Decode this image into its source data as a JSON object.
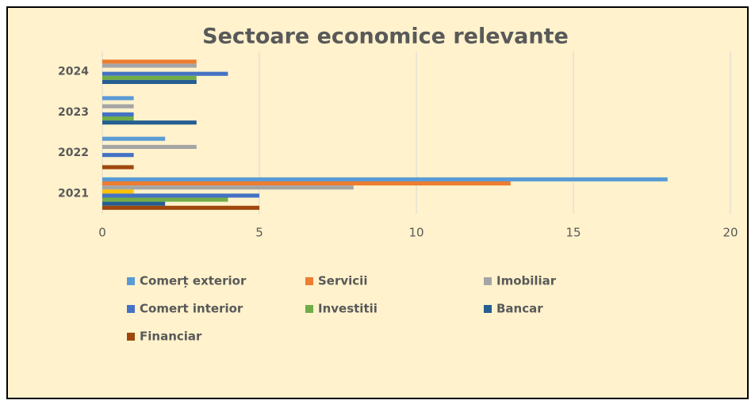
{
  "chart_data": {
    "type": "barh",
    "title": "Sectoare economice relevante",
    "categories": [
      "2021",
      "2022",
      "2023",
      "2024"
    ],
    "series": [
      {
        "name": "Comerț exterior",
        "color": "#5b9bd5",
        "values": [
          18,
          2,
          1,
          0
        ]
      },
      {
        "name": "Servicii",
        "color": "#ed7d31",
        "values": [
          13,
          0,
          0,
          3
        ]
      },
      {
        "name": "Imobiliar",
        "color": "#a5a5a5",
        "values": [
          8,
          3,
          1,
          3
        ]
      },
      {
        "color": "#ffc000",
        "values": [
          1,
          0,
          0,
          0
        ]
      },
      {
        "name": "Comert interior",
        "color": "#4472c4",
        "values": [
          5,
          1,
          1,
          4
        ]
      },
      {
        "name": "Investitii",
        "color": "#70ad47",
        "values": [
          4,
          0,
          1,
          3
        ]
      },
      {
        "name": "Bancar",
        "color": "#255e91",
        "values": [
          2,
          0,
          3,
          3
        ]
      },
      {
        "name": "Financiar",
        "color": "#9e480e",
        "values": [
          5,
          1,
          0,
          0
        ]
      }
    ],
    "xlim": [
      0,
      20
    ],
    "xticks": [
      0,
      5,
      10,
      15,
      20
    ],
    "grid": true,
    "legend": "bottom"
  }
}
